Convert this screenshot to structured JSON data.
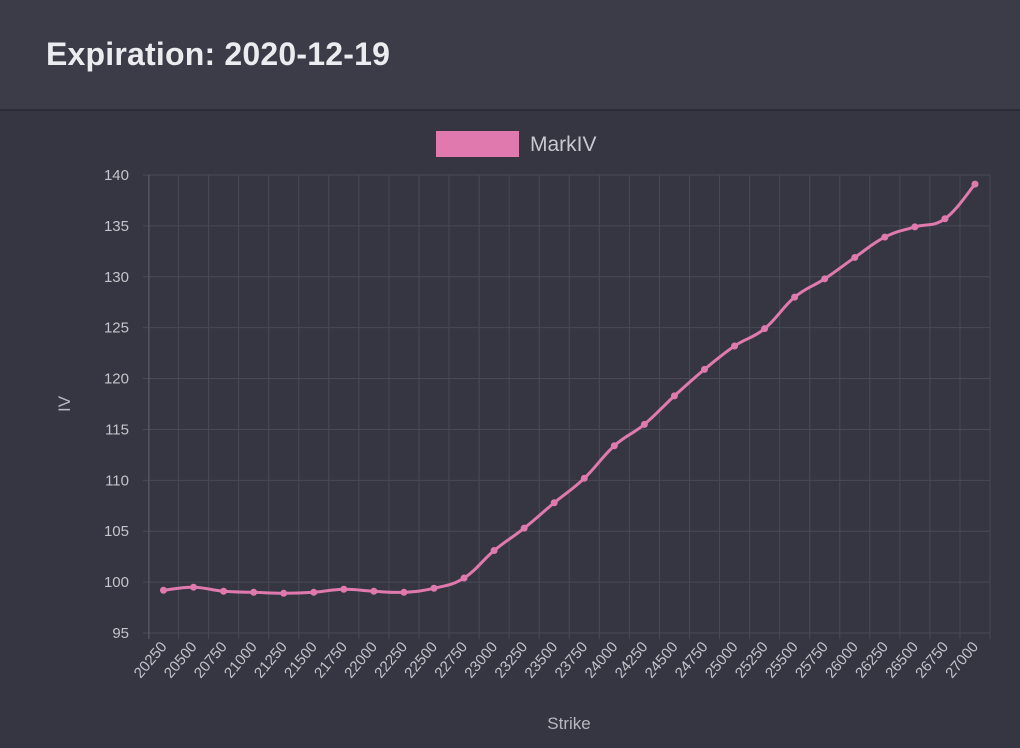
{
  "header": {
    "title": "Expiration: 2020-12-19"
  },
  "colors": {
    "series": "#e07aae",
    "grid": "#4a4a56",
    "background": "#363642"
  },
  "chart_data": {
    "type": "line",
    "title": "",
    "xlabel": "Strike",
    "ylabel": "IV",
    "ylim": [
      95,
      140
    ],
    "yticks": [
      95,
      100,
      105,
      110,
      115,
      120,
      125,
      130,
      135,
      140
    ],
    "grid": true,
    "legend_position": "top-center",
    "categories": [
      "20250",
      "20500",
      "20750",
      "21000",
      "21250",
      "21500",
      "21750",
      "22000",
      "22250",
      "22500",
      "22750",
      "23000",
      "23250",
      "23500",
      "23750",
      "24000",
      "24250",
      "24500",
      "24750",
      "25000",
      "25250",
      "25500",
      "25750",
      "26000",
      "26250",
      "26500",
      "26750",
      "27000"
    ],
    "series": [
      {
        "name": "MarkIV",
        "values": [
          99.2,
          99.5,
          99.1,
          99.0,
          98.9,
          99.0,
          99.3,
          99.1,
          99.0,
          99.4,
          100.4,
          103.1,
          105.3,
          107.8,
          110.2,
          113.4,
          115.5,
          118.3,
          120.9,
          123.2,
          124.9,
          128.0,
          129.8,
          131.9,
          133.9,
          134.9,
          135.7,
          139.1
        ]
      }
    ]
  }
}
